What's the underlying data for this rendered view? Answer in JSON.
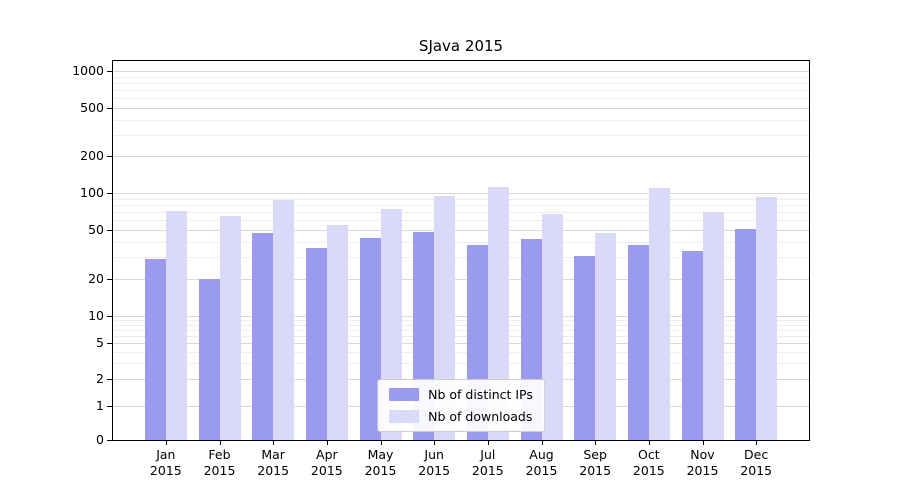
{
  "title": "SJava 2015",
  "colors": {
    "ips_bar": "#9a9aee",
    "downloads_bar": "#dadaf8",
    "grid_major": "#d9d9d9",
    "grid_minor": "#eeeeee",
    "axis": "#000000",
    "legend_border": "#cccccc",
    "background": "#ffffff"
  },
  "legend": {
    "items": [
      {
        "label": "Nb of distinct IPs",
        "color": "#9a9aee"
      },
      {
        "label": "Nb of downloads",
        "color": "#dadaf8"
      }
    ]
  },
  "chart_data": {
    "type": "bar",
    "title": "SJava 2015",
    "yscale": "symlog",
    "grid": true,
    "legend_position": "lower center",
    "categories": [
      "Jan 2015",
      "Feb 2015",
      "Mar 2015",
      "Apr 2015",
      "May 2015",
      "Jun 2015",
      "Jul 2015",
      "Aug 2015",
      "Sep 2015",
      "Oct 2015",
      "Nov 2015",
      "Dec 2015"
    ],
    "series": [
      {
        "name": "Nb of distinct IPs",
        "color": "#9a9aee",
        "values": [
          29,
          20,
          47,
          36,
          43,
          48,
          38,
          42,
          31,
          38,
          34,
          51
        ]
      },
      {
        "name": "Nb of downloads",
        "color": "#dadaf8",
        "values": [
          72,
          65,
          88,
          55,
          74,
          95,
          112,
          68,
          47,
          110,
          70,
          92
        ]
      }
    ],
    "y_ticks": [
      0,
      1,
      2,
      5,
      10,
      20,
      50,
      100,
      200,
      500,
      1000
    ],
    "y_minor_ticks": [
      3,
      4,
      6,
      7,
      8,
      9,
      30,
      40,
      60,
      70,
      80,
      90,
      300,
      400,
      600,
      700,
      800,
      900
    ],
    "ylim": [
      0,
      1250
    ],
    "xlabel": "",
    "ylabel": ""
  }
}
